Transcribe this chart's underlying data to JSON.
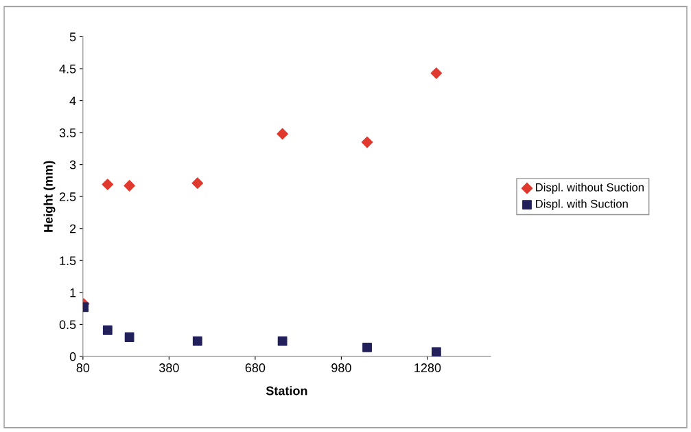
{
  "chart_data": {
    "type": "scatter",
    "xlabel": "Station",
    "ylabel": "Height (mm)",
    "xlim": [
      80,
      1500
    ],
    "xticks": [
      80,
      380,
      680,
      980,
      1280
    ],
    "ylim": [
      0,
      5
    ],
    "yticks": [
      0,
      0.5,
      1,
      1.5,
      2,
      2.5,
      3,
      3.5,
      4,
      4.5,
      5
    ],
    "grid": false,
    "legend": "right",
    "series": [
      {
        "name": "Displ. without Suction",
        "color": "#e0392e",
        "marker": "diamond",
        "x": [
          83,
          166,
          242,
          479,
          775,
          1070,
          1311
        ],
        "values": [
          0.82,
          2.69,
          2.67,
          2.71,
          3.48,
          3.35,
          4.43
        ]
      },
      {
        "name": "Displ. with Suction",
        "color": "#22205a",
        "marker": "square",
        "x": [
          83,
          166,
          242,
          479,
          775,
          1070,
          1311
        ],
        "values": [
          0.77,
          0.41,
          0.3,
          0.24,
          0.24,
          0.14,
          0.07
        ]
      }
    ]
  }
}
